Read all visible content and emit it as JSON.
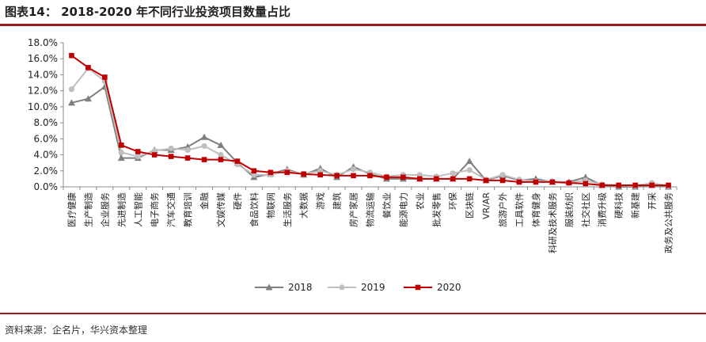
{
  "header": {
    "title": "图表14： 2018-2020 年不同行业投资项目数量占比"
  },
  "footer": {
    "source": "资料来源：企名片，华兴资本整理"
  },
  "colors": {
    "rule": "#9e1a1a",
    "s2018": "#7f7f7f",
    "s2019": "#bfbfbf",
    "s2020": "#c00000"
  },
  "chart_data": {
    "type": "line",
    "title": "",
    "xlabel": "",
    "ylabel": "",
    "ylim": [
      0,
      18
    ],
    "yticks": [
      "0.0%",
      "2.0%",
      "4.0%",
      "6.0%",
      "8.0%",
      "10.0%",
      "12.0%",
      "14.0%",
      "16.0%",
      "18.0%"
    ],
    "legend_position": "bottom",
    "categories": [
      "医疗健康",
      "生产制造",
      "企业服务",
      "先进制造",
      "人工智能",
      "电子商务",
      "汽车交通",
      "教育培训",
      "金融",
      "文娱传媒",
      "硬件",
      "食品饮料",
      "物联网",
      "生活服务",
      "大数据",
      "游戏",
      "建筑",
      "房产家居",
      "物流运输",
      "餐饮业",
      "能源电力",
      "农业",
      "批发零售",
      "环保",
      "区块链",
      "VR/AR",
      "旅游户外",
      "工具软件",
      "体育健身",
      "科研及技术服务",
      "服装纺织",
      "社交社区",
      "消费升级",
      "硬科技",
      "新基建",
      "开采",
      "政务及公共服务"
    ],
    "series": [
      {
        "name": "2018",
        "color": "#7f7f7f",
        "marker": "triangle",
        "values": [
          10.5,
          11.0,
          12.5,
          3.6,
          3.6,
          4.6,
          4.6,
          5.0,
          6.2,
          5.2,
          3.0,
          1.2,
          1.6,
          2.2,
          1.5,
          2.3,
          1.2,
          2.5,
          1.6,
          1.0,
          1.0,
          1.0,
          1.0,
          1.0,
          3.2,
          0.8,
          1.4,
          0.8,
          1.0,
          0.6,
          0.6,
          1.2,
          0.2,
          0.0,
          0.0,
          0.2,
          0.0
        ]
      },
      {
        "name": "2019",
        "color": "#bfbfbf",
        "marker": "circle",
        "values": [
          12.2,
          14.8,
          13.2,
          4.3,
          3.8,
          4.5,
          4.8,
          4.6,
          5.1,
          4.0,
          2.8,
          1.5,
          1.5,
          2.0,
          1.6,
          2.0,
          1.5,
          2.2,
          1.8,
          1.3,
          1.5,
          1.5,
          1.3,
          1.7,
          2.1,
          0.9,
          1.5,
          0.9,
          0.7,
          0.7,
          0.5,
          0.8,
          0.3,
          0.2,
          0.1,
          0.5,
          0.1
        ]
      },
      {
        "name": "2020",
        "color": "#c00000",
        "marker": "square",
        "values": [
          16.4,
          14.9,
          13.7,
          5.2,
          4.4,
          4.0,
          3.8,
          3.6,
          3.4,
          3.4,
          3.2,
          2.0,
          1.8,
          1.8,
          1.6,
          1.5,
          1.4,
          1.4,
          1.4,
          1.2,
          1.2,
          1.0,
          1.0,
          1.0,
          1.0,
          0.8,
          0.8,
          0.6,
          0.6,
          0.6,
          0.5,
          0.4,
          0.2,
          0.2,
          0.2,
          0.2,
          0.2
        ]
      }
    ]
  }
}
